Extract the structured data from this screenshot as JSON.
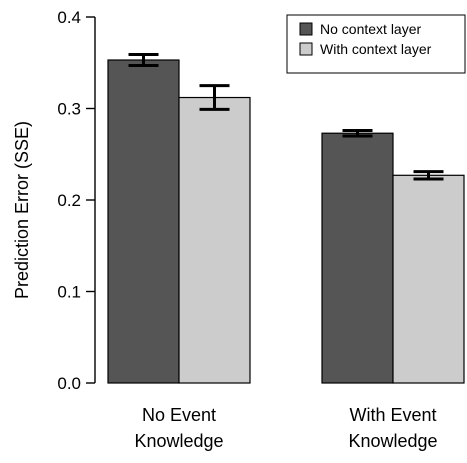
{
  "chart_data": {
    "type": "bar",
    "ylabel": "Prediction Error (SSE)",
    "xlabel": "",
    "title": "",
    "ylim": [
      0,
      0.4
    ],
    "y_ticks": [
      "0.0",
      "0.1",
      "0.2",
      "0.3",
      "0.4"
    ],
    "categories": [
      [
        "No Event",
        "Knowledge"
      ],
      [
        "With Event",
        "Knowledge"
      ]
    ],
    "series": [
      {
        "name": "No context layer",
        "color": "#555555",
        "values": [
          0.353,
          0.273
        ],
        "error": [
          0.006,
          0.003
        ]
      },
      {
        "name": "With context layer",
        "color": "#cccccc",
        "values": [
          0.312,
          0.227
        ],
        "error": [
          0.013,
          0.004
        ]
      }
    ],
    "legend_position": "top-right",
    "grid": false
  }
}
